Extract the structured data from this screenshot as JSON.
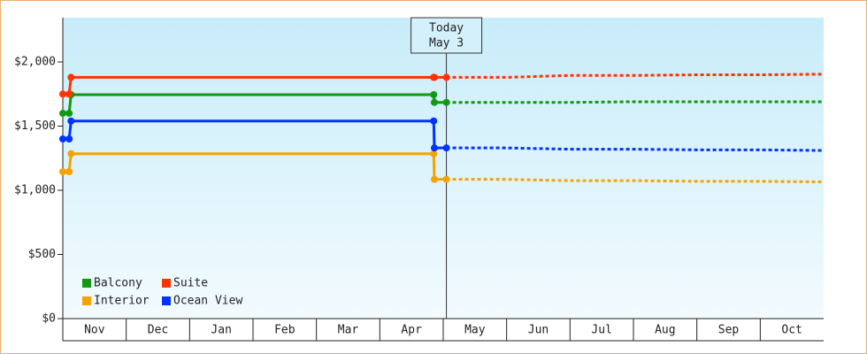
{
  "chart_data": {
    "type": "line",
    "categories": [
      "Nov",
      "Dec",
      "Jan",
      "Feb",
      "Mar",
      "Apr",
      "May",
      "Jun",
      "Jul",
      "Aug",
      "Sep",
      "Oct"
    ],
    "xlim": [
      0,
      12
    ],
    "ylim": [
      0,
      2345
    ],
    "yticks": [
      {
        "value": 0,
        "label": "$0"
      },
      {
        "value": 500,
        "label": "$500"
      },
      {
        "value": 1000,
        "label": "$1,000"
      },
      {
        "value": 1500,
        "label": "$1,500"
      },
      {
        "value": 2000,
        "label": "$2,000"
      }
    ],
    "today": {
      "x": 6.05,
      "text": [
        "Today",
        "May 3"
      ]
    },
    "x": [
      0,
      0.1,
      0.13,
      5.85,
      5.86,
      6.05,
      7,
      8,
      9,
      10,
      11,
      12
    ],
    "series": [
      {
        "name": "Balcony",
        "color": "#119911",
        "values": [
          1600,
          1600,
          1745,
          1745,
          1685,
          1685,
          1685,
          1685,
          1690,
          1690,
          1690,
          1690
        ]
      },
      {
        "name": "Suite",
        "color": "#ff3300",
        "values": [
          1750,
          1750,
          1880,
          1880,
          1880,
          1880,
          1880,
          1895,
          1895,
          1900,
          1900,
          1905
        ]
      },
      {
        "name": "Interior",
        "color": "#f5a300",
        "values": [
          1145,
          1145,
          1285,
          1285,
          1085,
          1085,
          1085,
          1075,
          1075,
          1070,
          1070,
          1065
        ]
      },
      {
        "name": "Ocean View",
        "color": "#0033ff",
        "values": [
          1400,
          1400,
          1540,
          1540,
          1330,
          1330,
          1330,
          1320,
          1320,
          1315,
          1315,
          1310
        ]
      }
    ]
  }
}
